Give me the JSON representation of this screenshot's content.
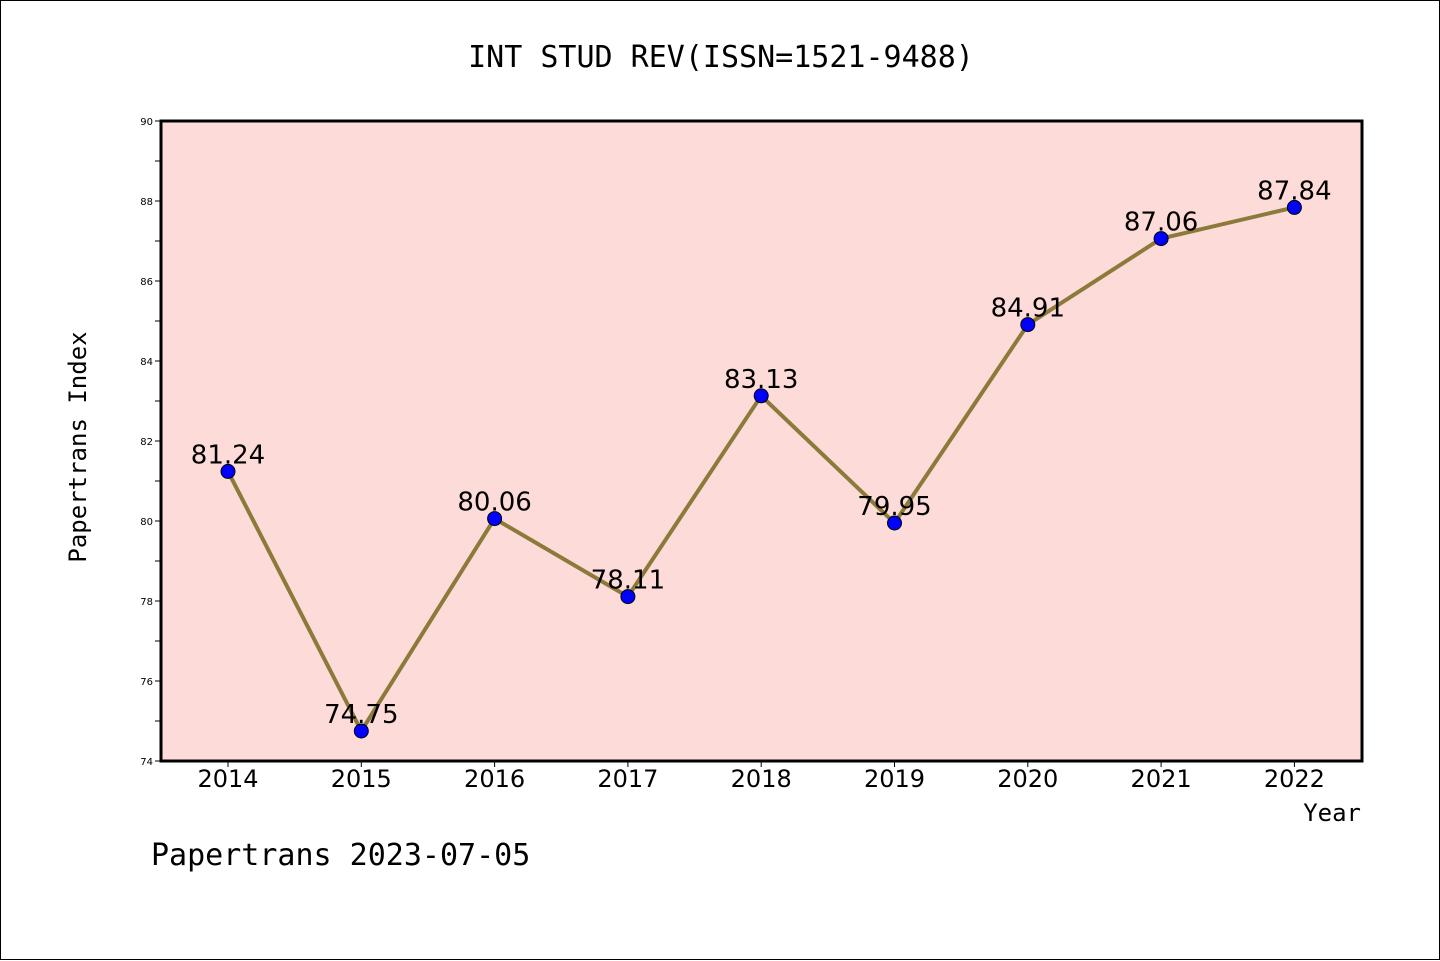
{
  "chart_data": {
    "type": "line",
    "title": "INT STUD REV(ISSN=1521-9488)",
    "xlabel": "Year",
    "ylabel": "Papertrans Index",
    "categories": [
      "2014",
      "2015",
      "2016",
      "2017",
      "2018",
      "2019",
      "2020",
      "2021",
      "2022"
    ],
    "series": [
      {
        "values": [
          81.24,
          74.75,
          80.06,
          78.11,
          83.13,
          79.95,
          84.91,
          87.06,
          87.84
        ],
        "labels": [
          "81.24",
          "74.75",
          "80.06",
          "78.11",
          "83.13",
          "79.95",
          "84.91",
          "87.06",
          "87.84"
        ]
      }
    ],
    "ylim": [
      74,
      90
    ],
    "yticks": [
      "74",
      "76",
      "78",
      "80",
      "82",
      "84",
      "86",
      "88",
      "90"
    ],
    "grid": false,
    "colors": {
      "plot_background": "#fddbd8",
      "line": "#8b7a3a",
      "marker": "#0000ff"
    }
  },
  "footer": "Papertrans 2023-07-05"
}
